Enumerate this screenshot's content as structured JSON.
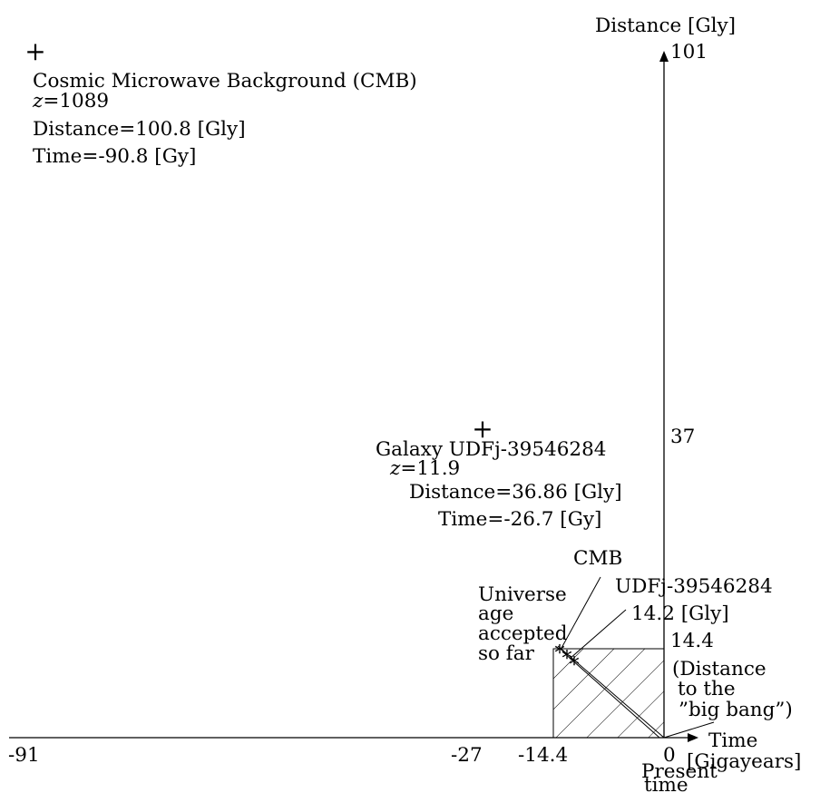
{
  "axes": {
    "y_title": "Distance [Gly]",
    "x_title_line1": "Time",
    "x_title_line2": "[Gigayears]",
    "y_ticks": [
      "101",
      "37",
      "14.4"
    ],
    "x_ticks": [
      "-91",
      "-27",
      "-14.4",
      "0"
    ]
  },
  "present": {
    "line1": "Present",
    "line2": "time"
  },
  "cmb": {
    "name": "Cosmic Microwave Background (CMB)",
    "z_label": "z",
    "z_value": "=1089",
    "distance": "Distance=100.8 [Gly]",
    "time": "Time=-90.8 [Gy]",
    "short": "CMB"
  },
  "galaxy": {
    "name": "Galaxy UDFj-39546284",
    "z_label": "z",
    "z_value": "=11.9",
    "distance": "Distance=36.86 [Gly]",
    "time": "Time=-26.7 [Gy]",
    "short": "UDFj-39546284",
    "gly": "14.2 [Gly]"
  },
  "universe_age": {
    "line1": "Universe",
    "line2": "age",
    "line3": "accepted",
    "line4": "so far"
  },
  "big_bang_note": {
    "line1": "(Distance",
    "line2": "to the",
    "line3": "”big bang”)"
  }
}
